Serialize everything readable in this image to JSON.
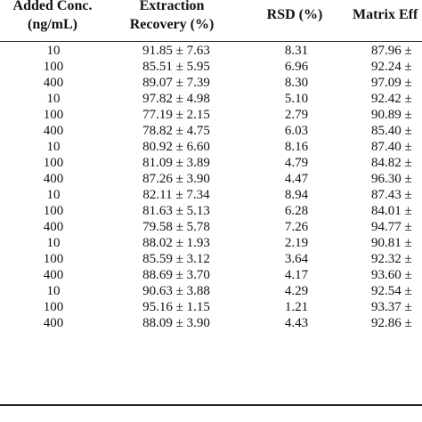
{
  "table": {
    "headers": {
      "conc_line1": "Added Conc.",
      "conc_line2": "(ng/mL)",
      "recovery_line1": "Extraction",
      "recovery_line2": "Recovery (%)",
      "rsd": "RSD (%)",
      "matrix": "Matrix Eff"
    },
    "rows": [
      {
        "conc": "10",
        "recovery": "91.85 ± 7.63",
        "rsd": "8.31",
        "matrix": "87.96 ±"
      },
      {
        "conc": "100",
        "recovery": "85.51 ± 5.95",
        "rsd": "6.96",
        "matrix": "92.24 ±"
      },
      {
        "conc": "400",
        "recovery": "89.07 ± 7.39",
        "rsd": "8.30",
        "matrix": "97.09 ±"
      },
      {
        "conc": "10",
        "recovery": "97.82 ± 4.98",
        "rsd": "5.10",
        "matrix": "92.42 ±"
      },
      {
        "conc": "100",
        "recovery": "77.19 ± 2.15",
        "rsd": "2.79",
        "matrix": "90.89 ±"
      },
      {
        "conc": "400",
        "recovery": "78.82 ± 4.75",
        "rsd": "6.03",
        "matrix": "85.40 ±"
      },
      {
        "conc": "10",
        "recovery": "80.92 ± 6.60",
        "rsd": "8.16",
        "matrix": "87.40 ±"
      },
      {
        "conc": "100",
        "recovery": "81.09 ± 3.89",
        "rsd": "4.79",
        "matrix": "84.82 ±"
      },
      {
        "conc": "400",
        "recovery": "87.26 ± 3.90",
        "rsd": "4.47",
        "matrix": "96.30 ±"
      },
      {
        "conc": "10",
        "recovery": "82.11 ± 7.34",
        "rsd": "8.94",
        "matrix": "87.43 ±"
      },
      {
        "conc": "100",
        "recovery": "81.63 ± 5.13",
        "rsd": "6.28",
        "matrix": "84.01 ±"
      },
      {
        "conc": "400",
        "recovery": "79.58 ± 5.78",
        "rsd": "7.26",
        "matrix": "94.77 ±"
      },
      {
        "conc": "10",
        "recovery": "88.02 ± 1.93",
        "rsd": "2.19",
        "matrix": "90.81 ±"
      },
      {
        "conc": "100",
        "recovery": "85.59 ± 3.12",
        "rsd": "3.64",
        "matrix": "92.32 ±"
      },
      {
        "conc": "400",
        "recovery": "88.69 ± 3.70",
        "rsd": "4.17",
        "matrix": "93.60 ±"
      },
      {
        "conc": "10",
        "recovery": "90.63 ± 3.88",
        "rsd": "4.29",
        "matrix": "92.54 ±"
      },
      {
        "conc": "100",
        "recovery": "95.16 ± 1.15",
        "rsd": "1.21",
        "matrix": "93.37 ±"
      },
      {
        "conc": "400",
        "recovery": "88.09 ± 3.90",
        "rsd": "4.43",
        "matrix": "92.86 ±"
      }
    ]
  }
}
